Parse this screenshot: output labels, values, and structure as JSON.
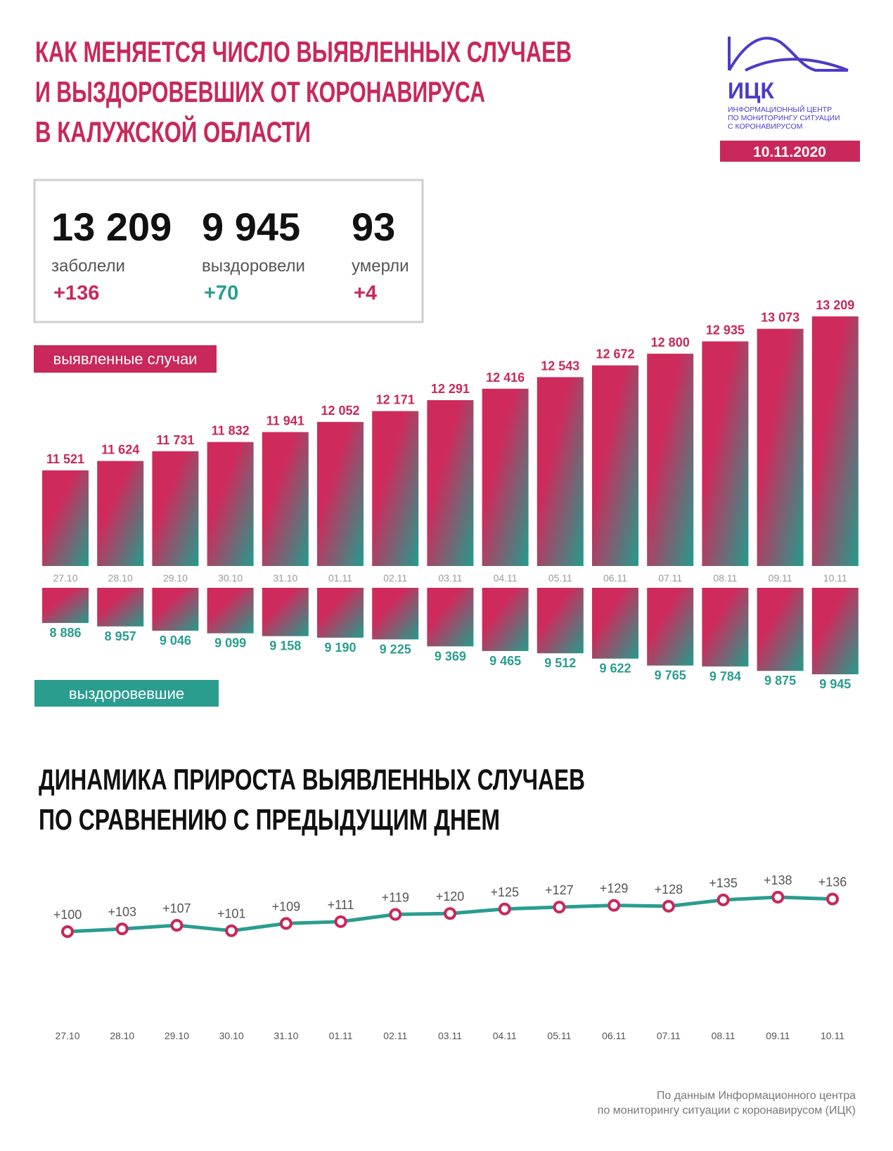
{
  "header": {
    "title": [
      "КАК МЕНЯЕТСЯ ЧИСЛО ВЫЯВЛЕННЫХ СЛУЧАЕВ",
      "И ВЫЗДОРОВЕВШИХ ОТ КОРОНАВИРУСА",
      "В КАЛУЖСКОЙ ОБЛАСТИ"
    ],
    "logo": "ИЦК",
    "logo_subtitle": [
      "ИНФОРМАЦИОННЫЙ ЦЕНТР",
      "ПО МОНИТОРИНГУ СИТУАЦИИ",
      "С КОРОНАВИРУСОМ"
    ],
    "date": "10.11.2020"
  },
  "stats": [
    {
      "value": "13 209",
      "label": "заболели",
      "delta": "+136"
    },
    {
      "value": "9 945",
      "label": "выздоровели",
      "delta": "+70"
    },
    {
      "value": "93",
      "label": "умерли",
      "delta": "+4"
    }
  ],
  "chart_data": [
    {
      "type": "bar",
      "label": "выявленные случаи",
      "color": "#c8285a",
      "categories": [
        "27.10",
        "28.10",
        "29.10",
        "30.10",
        "31.10",
        "01.11",
        "02.11",
        "03.11",
        "04.11",
        "05.11",
        "06.11",
        "07.11",
        "08.11",
        "09.11",
        "10.11"
      ],
      "values": [
        11521,
        11624,
        11731,
        11832,
        11941,
        12052,
        12171,
        12291,
        12416,
        12543,
        12672,
        12800,
        12935,
        13073,
        13209
      ],
      "value_labels": [
        "11 521",
        "11 624",
        "11 731",
        "11 832",
        "11 941",
        "12 052",
        "12 171",
        "12 291",
        "12 416",
        "12 543",
        "12 672",
        "12 800",
        "12 935",
        "13 073",
        "13 209"
      ]
    },
    {
      "type": "bar",
      "label": "выздоровевшие",
      "color": "#2a9d8f",
      "values": [
        8886,
        8957,
        9046,
        9099,
        9158,
        9190,
        9225,
        9369,
        9465,
        9512,
        9622,
        9765,
        9784,
        9875,
        9945
      ],
      "value_labels": [
        "8 886",
        "8 957",
        "9 046",
        "9 099",
        "9 158",
        "9 190",
        "9 225",
        "9 369",
        "9 465",
        "9 512",
        "9 622",
        "9 765",
        "9 784",
        "9 875",
        "9 945"
      ]
    },
    {
      "type": "line",
      "title": [
        "ДИНАМИКА ПРИРОСТА ВЫЯВЛЕННЫХ СЛУЧАЕВ",
        "ПО СРАВНЕНИЮ С ПРЕДЫДУЩИМ ДНЕМ"
      ],
      "color": "#2a9d8f",
      "categories": [
        "27.10",
        "28.10",
        "29.10",
        "30.10",
        "31.10",
        "01.11",
        "02.11",
        "03.11",
        "04.11",
        "05.11",
        "06.11",
        "07.11",
        "08.11",
        "09.11",
        "10.11"
      ],
      "values": [
        100,
        103,
        107,
        101,
        109,
        111,
        119,
        120,
        125,
        127,
        129,
        128,
        135,
        138,
        136
      ],
      "value_labels": [
        "+100",
        "+103",
        "+107",
        "+101",
        "+109",
        "+111",
        "+119",
        "+120",
        "+125",
        "+127",
        "+129",
        "+128",
        "+135",
        "+138",
        "+136"
      ]
    }
  ],
  "source": [
    "По данным Информационного центра",
    "по мониторингу ситуации с коронавирусом (ИЦК)"
  ]
}
